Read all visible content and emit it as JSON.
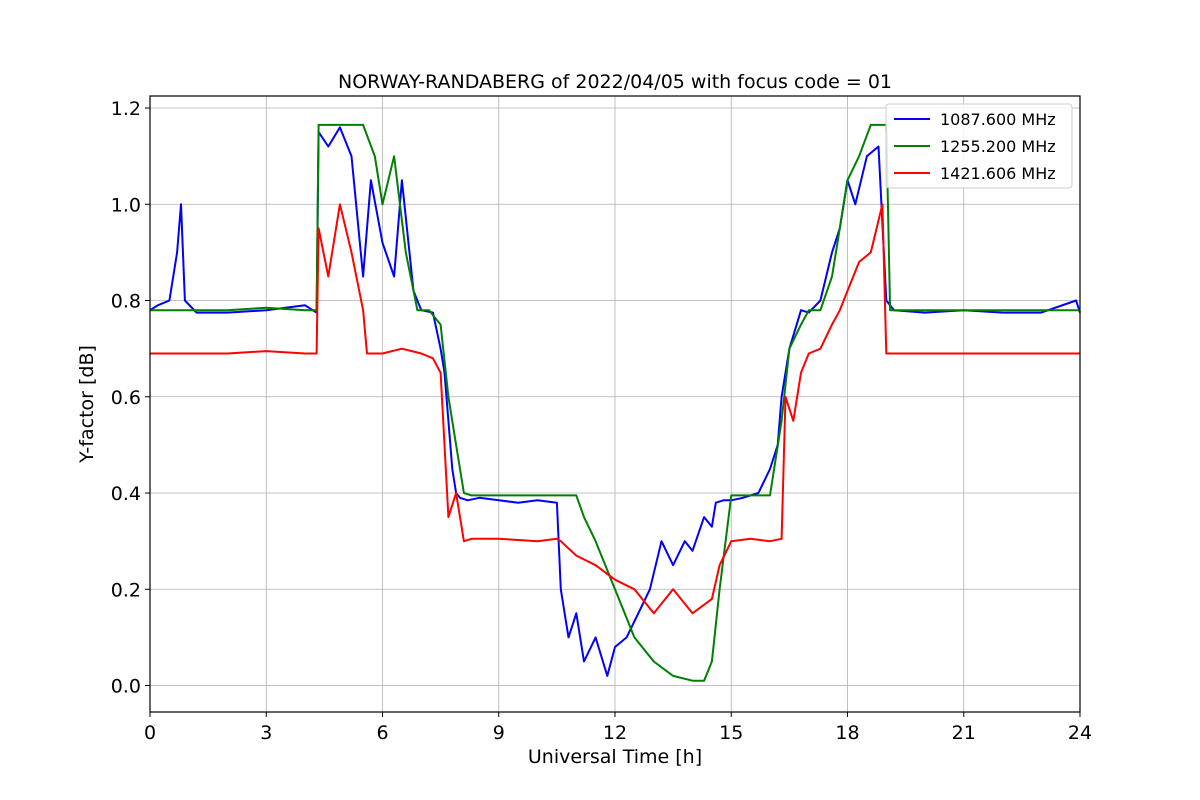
{
  "chart_data": {
    "type": "line",
    "title": "NORWAY-RANDABERG of 2022/04/05 with focus code = 01",
    "xlabel": "Universal Time [h]",
    "ylabel": "Y-factor [dB]",
    "xlim": [
      0,
      24
    ],
    "ylim": [
      -0.055,
      1.225
    ],
    "xticks": [
      0,
      3,
      6,
      9,
      12,
      15,
      18,
      21,
      24
    ],
    "yticks": [
      0.0,
      0.2,
      0.4,
      0.6,
      0.8,
      1.0,
      1.2
    ],
    "ytick_labels": [
      "0.0",
      "0.2",
      "0.4",
      "0.6",
      "0.8",
      "1.0",
      "1.2"
    ],
    "grid": true,
    "legend_position": "top-right",
    "series": [
      {
        "name": "1087.600 MHz",
        "color": "#0000ff",
        "x": [
          0,
          0.2,
          0.5,
          0.7,
          0.8,
          0.9,
          1.2,
          2.0,
          3.0,
          4.0,
          4.3,
          4.35,
          4.6,
          4.9,
          5.2,
          5.5,
          5.7,
          6.0,
          6.3,
          6.5,
          6.8,
          7.0,
          7.3,
          7.5,
          7.6,
          7.7,
          7.8,
          7.9,
          8.0,
          8.2,
          8.5,
          9.0,
          9.5,
          10.0,
          10.5,
          10.6,
          10.8,
          11.0,
          11.2,
          11.5,
          11.8,
          12.0,
          12.3,
          12.6,
          12.9,
          13.2,
          13.5,
          13.8,
          14.0,
          14.3,
          14.5,
          14.6,
          14.8,
          15.0,
          15.3,
          15.7,
          16.0,
          16.2,
          16.3,
          16.5,
          16.8,
          17.0,
          17.3,
          17.6,
          17.8,
          18.0,
          18.2,
          18.5,
          18.8,
          19.0,
          19.2,
          20.0,
          21.0,
          22.0,
          23.0,
          23.9,
          24.0
        ],
        "y": [
          0.78,
          0.79,
          0.8,
          0.9,
          1.0,
          0.8,
          0.775,
          0.775,
          0.78,
          0.79,
          0.775,
          1.15,
          1.12,
          1.16,
          1.1,
          0.85,
          1.05,
          0.92,
          0.85,
          1.05,
          0.82,
          0.78,
          0.775,
          0.7,
          0.65,
          0.55,
          0.45,
          0.4,
          0.39,
          0.385,
          0.39,
          0.385,
          0.38,
          0.385,
          0.38,
          0.2,
          0.1,
          0.15,
          0.05,
          0.1,
          0.02,
          0.08,
          0.1,
          0.15,
          0.2,
          0.3,
          0.25,
          0.3,
          0.28,
          0.35,
          0.33,
          0.38,
          0.385,
          0.385,
          0.39,
          0.4,
          0.45,
          0.5,
          0.6,
          0.7,
          0.78,
          0.775,
          0.8,
          0.9,
          0.95,
          1.05,
          1.0,
          1.1,
          1.12,
          0.8,
          0.78,
          0.775,
          0.78,
          0.775,
          0.775,
          0.8,
          0.775
        ]
      },
      {
        "name": "1255.200 MHz",
        "color": "#008000",
        "x": [
          0,
          0.5,
          1.0,
          2.0,
          3.0,
          4.0,
          4.3,
          4.35,
          5.0,
          5.5,
          5.8,
          6.0,
          6.3,
          6.6,
          6.9,
          7.2,
          7.5,
          7.7,
          7.9,
          8.1,
          8.3,
          9.0,
          10.0,
          11.0,
          11.2,
          11.5,
          12.0,
          12.5,
          13.0,
          13.5,
          14.0,
          14.3,
          14.5,
          14.7,
          15.0,
          15.5,
          16.0,
          16.3,
          16.5,
          16.8,
          17.0,
          17.3,
          17.6,
          17.8,
          18.0,
          18.3,
          18.6,
          19.0,
          19.1,
          20.0,
          22.0,
          24.0
        ],
        "y": [
          0.78,
          0.78,
          0.78,
          0.78,
          0.785,
          0.78,
          0.78,
          1.165,
          1.165,
          1.165,
          1.1,
          1.0,
          1.1,
          0.9,
          0.78,
          0.78,
          0.75,
          0.6,
          0.5,
          0.4,
          0.395,
          0.395,
          0.395,
          0.395,
          0.35,
          0.3,
          0.2,
          0.1,
          0.05,
          0.02,
          0.01,
          0.01,
          0.05,
          0.2,
          0.395,
          0.395,
          0.395,
          0.55,
          0.7,
          0.75,
          0.78,
          0.78,
          0.85,
          0.95,
          1.05,
          1.1,
          1.165,
          1.165,
          0.78,
          0.78,
          0.78,
          0.78
        ]
      },
      {
        "name": "1421.606 MHz",
        "color": "#ff0000",
        "x": [
          0,
          1.0,
          2.0,
          3.0,
          4.0,
          4.3,
          4.35,
          4.6,
          4.9,
          5.2,
          5.5,
          5.6,
          6.0,
          6.5,
          7.0,
          7.3,
          7.5,
          7.6,
          7.7,
          7.9,
          8.1,
          8.3,
          9.0,
          10.0,
          10.5,
          10.6,
          11.0,
          11.5,
          12.0,
          12.5,
          13.0,
          13.5,
          14.0,
          14.5,
          14.7,
          15.0,
          15.5,
          16.0,
          16.3,
          16.4,
          16.6,
          16.8,
          17.0,
          17.3,
          17.6,
          17.8,
          18.0,
          18.3,
          18.6,
          18.9,
          19.0,
          19.1,
          20.0,
          22.0,
          24.0
        ],
        "y": [
          0.69,
          0.69,
          0.69,
          0.695,
          0.69,
          0.69,
          0.95,
          0.85,
          1.0,
          0.9,
          0.78,
          0.69,
          0.69,
          0.7,
          0.69,
          0.68,
          0.65,
          0.5,
          0.35,
          0.4,
          0.3,
          0.305,
          0.305,
          0.3,
          0.305,
          0.3,
          0.27,
          0.25,
          0.22,
          0.2,
          0.15,
          0.2,
          0.15,
          0.18,
          0.25,
          0.3,
          0.305,
          0.3,
          0.305,
          0.6,
          0.55,
          0.65,
          0.69,
          0.7,
          0.75,
          0.78,
          0.82,
          0.88,
          0.9,
          1.0,
          0.69,
          0.69,
          0.69,
          0.69,
          0.69
        ]
      }
    ]
  }
}
